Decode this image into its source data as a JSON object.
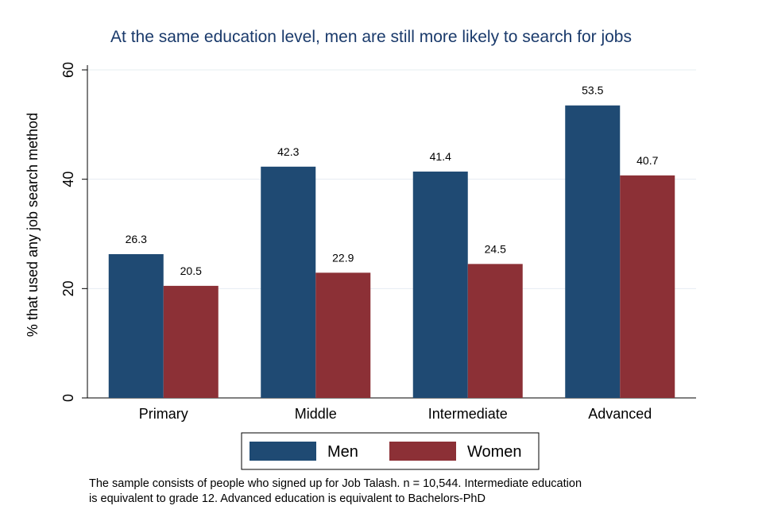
{
  "chart_data": {
    "type": "bar",
    "title": "At the same education level, men are still more likely to search for jobs",
    "ylabel": "% that used any job search method",
    "xlabel": "",
    "ylim": [
      0,
      60
    ],
    "yticks": [
      0,
      20,
      40,
      60
    ],
    "grid": true,
    "categories": [
      "Primary",
      "Middle",
      "Intermediate",
      "Advanced"
    ],
    "series": [
      {
        "name": "Men",
        "color": "#1f4a73",
        "values": [
          26.3,
          42.3,
          41.4,
          53.5
        ]
      },
      {
        "name": "Women",
        "color": "#8c3036",
        "values": [
          20.5,
          22.9,
          24.5,
          40.7
        ]
      }
    ],
    "data_labels": [
      [
        "26.3",
        "42.3",
        "41.4",
        "53.5"
      ],
      [
        "20.5",
        "22.9",
        "24.5",
        "40.7"
      ]
    ],
    "legend_position": "bottom",
    "note_lines": [
      "The sample consists of people who signed up for Job Talash. n = 10,544. Intermediate education",
      "is equivalent to grade 12. Advanced education is equivalent to Bachelors-PhD"
    ]
  }
}
